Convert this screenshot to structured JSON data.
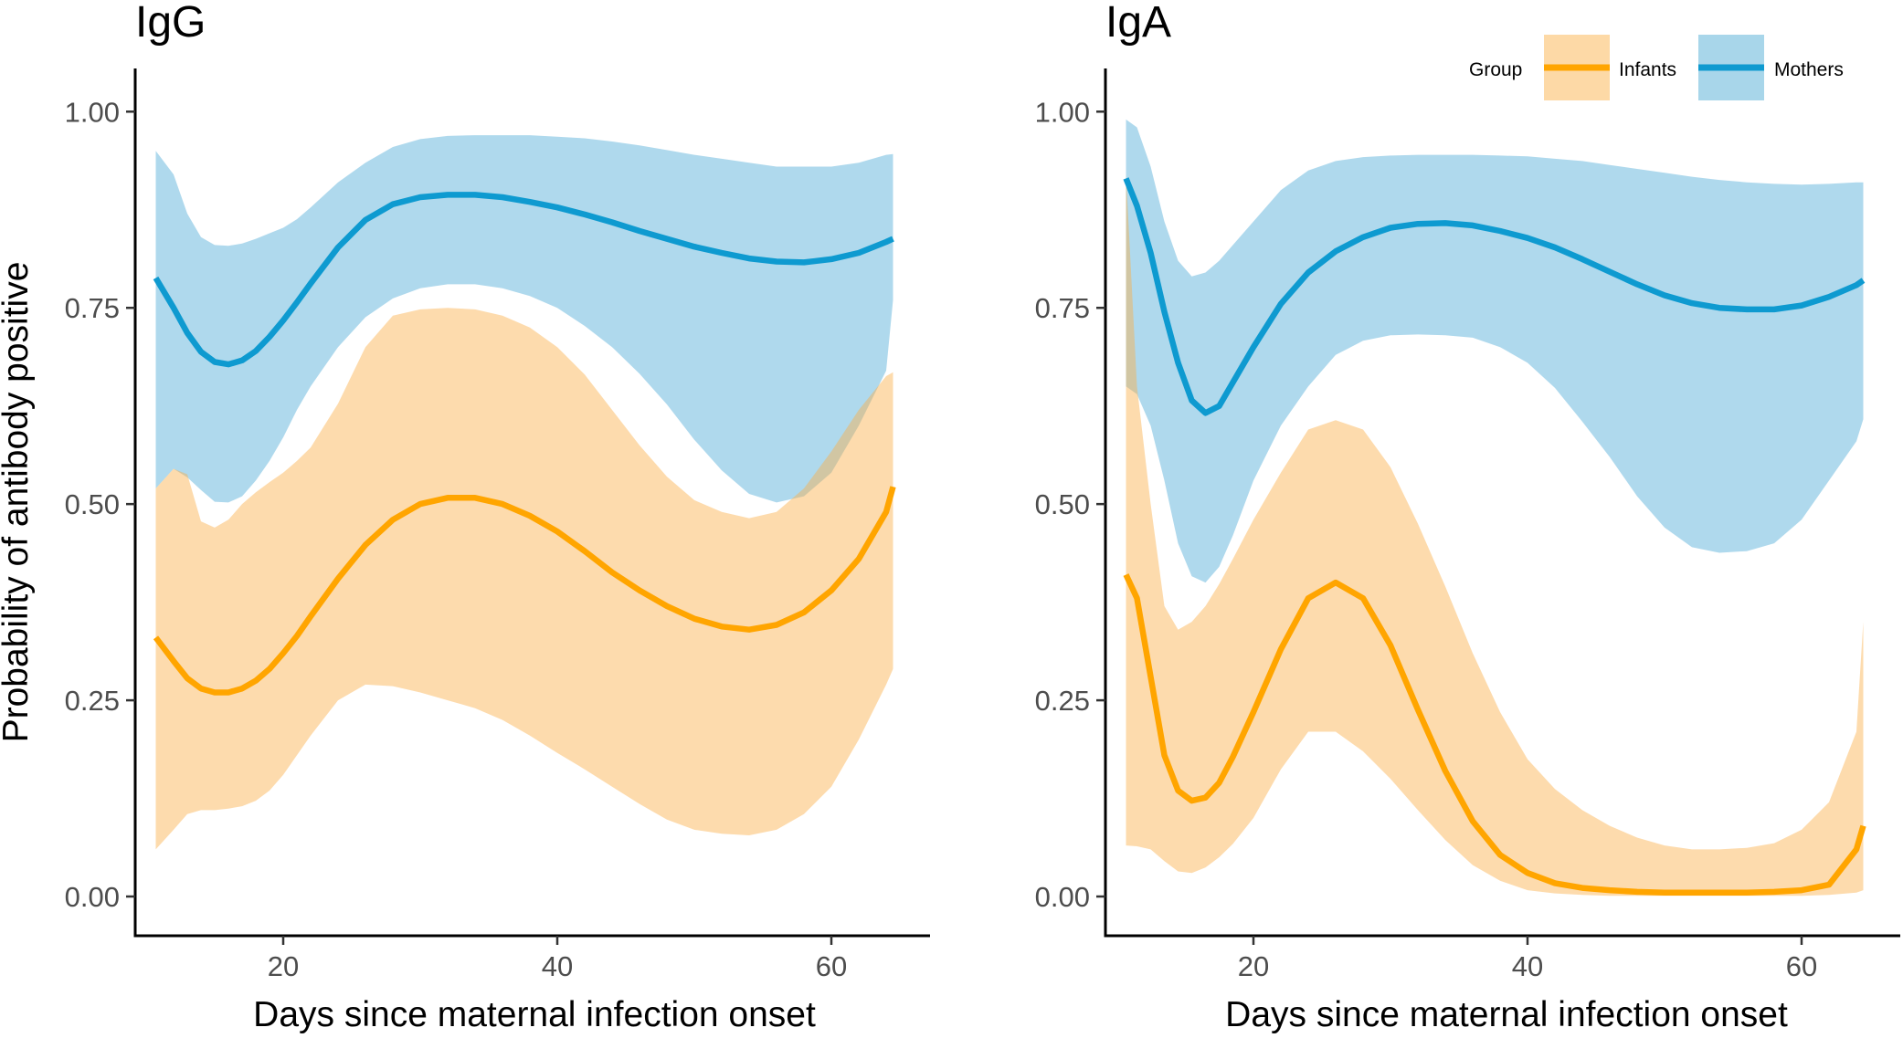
{
  "colors": {
    "infants": "#FFA500",
    "infants_band": "#FDD9A6",
    "mothers": "#0E9AD0",
    "mothers_band": "#A8D6EA",
    "axis": "#000000",
    "tick_label": "#4d4d4d"
  },
  "y_axis_label": "Probability of antibody positive",
  "legend": {
    "title": "Group",
    "position": "top-right",
    "entries": [
      "Infants",
      "Mothers"
    ]
  },
  "chart_data": [
    {
      "type": "line",
      "title": "IgG",
      "xlabel": "Days since maternal infection onset",
      "ylabel": "Probability of antibody positive",
      "xlim": [
        9.2,
        67.2
      ],
      "ylim": [
        -0.05,
        1.055
      ],
      "xticks": [
        20,
        40,
        60
      ],
      "xtick_labels": [
        "20",
        "40",
        "60"
      ],
      "yticks": [
        0,
        0.25,
        0.5,
        0.75,
        1.0
      ],
      "ytick_labels": [
        "0.00",
        "0.25",
        "0.50",
        "0.75",
        "1.00"
      ],
      "x": [
        10.7,
        12,
        13,
        14,
        15,
        16,
        17,
        18,
        19,
        20,
        21,
        22,
        24,
        26,
        28,
        30,
        32,
        34,
        36,
        38,
        40,
        42,
        44,
        46,
        48,
        50,
        52,
        54,
        56,
        58,
        60,
        62,
        64,
        64.5
      ],
      "series": [
        {
          "name": "Mothers",
          "values": [
            0.788,
            0.75,
            0.718,
            0.694,
            0.681,
            0.678,
            0.683,
            0.695,
            0.713,
            0.734,
            0.757,
            0.781,
            0.827,
            0.862,
            0.882,
            0.891,
            0.894,
            0.894,
            0.891,
            0.885,
            0.878,
            0.869,
            0.859,
            0.848,
            0.838,
            0.828,
            0.82,
            0.813,
            0.809,
            0.808,
            0.812,
            0.82,
            0.834,
            0.838
          ],
          "lower": [
            0.52,
            0.545,
            0.534,
            0.518,
            0.503,
            0.502,
            0.51,
            0.53,
            0.555,
            0.585,
            0.62,
            0.65,
            0.7,
            0.738,
            0.762,
            0.775,
            0.78,
            0.78,
            0.775,
            0.765,
            0.75,
            0.727,
            0.7,
            0.666,
            0.627,
            0.582,
            0.543,
            0.513,
            0.502,
            0.51,
            0.54,
            0.6,
            0.67,
            0.76
          ],
          "upper": [
            0.95,
            0.92,
            0.87,
            0.84,
            0.83,
            0.829,
            0.832,
            0.838,
            0.845,
            0.852,
            0.863,
            0.878,
            0.91,
            0.935,
            0.955,
            0.965,
            0.969,
            0.97,
            0.97,
            0.97,
            0.968,
            0.966,
            0.962,
            0.957,
            0.951,
            0.945,
            0.94,
            0.935,
            0.93,
            0.93,
            0.93,
            0.935,
            0.945,
            0.946
          ]
        },
        {
          "name": "Infants",
          "values": [
            0.33,
            0.3,
            0.278,
            0.265,
            0.26,
            0.26,
            0.265,
            0.275,
            0.29,
            0.31,
            0.332,
            0.357,
            0.405,
            0.448,
            0.48,
            0.5,
            0.508,
            0.508,
            0.5,
            0.485,
            0.465,
            0.44,
            0.413,
            0.39,
            0.37,
            0.354,
            0.344,
            0.34,
            0.346,
            0.362,
            0.39,
            0.43,
            0.49,
            0.522
          ],
          "lower": [
            0.06,
            0.085,
            0.105,
            0.11,
            0.11,
            0.112,
            0.115,
            0.122,
            0.135,
            0.155,
            0.18,
            0.205,
            0.25,
            0.27,
            0.268,
            0.26,
            0.25,
            0.24,
            0.225,
            0.205,
            0.183,
            0.162,
            0.14,
            0.118,
            0.098,
            0.085,
            0.08,
            0.078,
            0.085,
            0.105,
            0.14,
            0.2,
            0.27,
            0.29
          ],
          "upper": [
            0.52,
            0.545,
            0.538,
            0.478,
            0.47,
            0.48,
            0.5,
            0.515,
            0.528,
            0.54,
            0.555,
            0.572,
            0.628,
            0.7,
            0.74,
            0.748,
            0.75,
            0.748,
            0.74,
            0.725,
            0.7,
            0.665,
            0.62,
            0.575,
            0.535,
            0.505,
            0.49,
            0.482,
            0.49,
            0.52,
            0.567,
            0.62,
            0.663,
            0.668
          ]
        }
      ]
    },
    {
      "type": "line",
      "title": "IgA",
      "xlabel": "Days since maternal infection onset",
      "ylabel": "Probability of antibody positive",
      "xlim": [
        9.2,
        67.2
      ],
      "ylim": [
        -0.05,
        1.055
      ],
      "xticks": [
        20,
        40,
        60
      ],
      "xtick_labels": [
        "20",
        "40",
        "60"
      ],
      "yticks": [
        0,
        0.25,
        0.5,
        0.75,
        1.0
      ],
      "ytick_labels": [
        "0.00",
        "0.25",
        "0.50",
        "0.75",
        "1.00"
      ],
      "x": [
        10.7,
        11.5,
        12.5,
        13.5,
        14.5,
        15.5,
        16.5,
        17.5,
        18.5,
        20,
        22,
        24,
        26,
        28,
        30,
        32,
        34,
        36,
        38,
        40,
        42,
        44,
        46,
        48,
        50,
        52,
        54,
        56,
        58,
        60,
        62,
        64,
        64.5
      ],
      "series": [
        {
          "name": "Mothers",
          "values": [
            0.915,
            0.88,
            0.82,
            0.745,
            0.68,
            0.632,
            0.616,
            0.625,
            0.655,
            0.7,
            0.755,
            0.795,
            0.822,
            0.84,
            0.852,
            0.857,
            0.858,
            0.855,
            0.848,
            0.839,
            0.827,
            0.812,
            0.796,
            0.78,
            0.766,
            0.756,
            0.75,
            0.748,
            0.748,
            0.753,
            0.764,
            0.779,
            0.785
          ],
          "lower": [
            0.65,
            0.64,
            0.6,
            0.53,
            0.45,
            0.408,
            0.4,
            0.42,
            0.46,
            0.53,
            0.6,
            0.65,
            0.69,
            0.708,
            0.715,
            0.716,
            0.715,
            0.712,
            0.7,
            0.68,
            0.648,
            0.605,
            0.56,
            0.51,
            0.47,
            0.445,
            0.438,
            0.44,
            0.45,
            0.48,
            0.53,
            0.58,
            0.608
          ]
        },
        {
          "name": "Infants",
          "values": [
            0.41,
            0.38,
            0.28,
            0.18,
            0.135,
            0.122,
            0.126,
            0.145,
            0.178,
            0.235,
            0.315,
            0.38,
            0.4,
            0.38,
            0.32,
            0.238,
            0.16,
            0.096,
            0.053,
            0.03,
            0.017,
            0.011,
            0.008,
            0.006,
            0.005,
            0.005,
            0.005,
            0.005,
            0.006,
            0.008,
            0.015,
            0.06,
            0.09
          ],
          "lower": [
            0.065,
            0.064,
            0.06,
            0.045,
            0.032,
            0.03,
            0.037,
            0.05,
            0.067,
            0.1,
            0.162,
            0.21,
            0.21,
            0.185,
            0.15,
            0.11,
            0.072,
            0.04,
            0.02,
            0.008,
            0.004,
            0.002,
            0.001,
            0.001,
            0.001,
            0.001,
            0.001,
            0.001,
            0.001,
            0.001,
            0.002,
            0.005,
            0.008
          ],
          "upper": [
            0.92,
            0.65,
            0.5,
            0.37,
            0.34,
            0.35,
            0.37,
            0.398,
            0.43,
            0.48,
            0.54,
            0.595,
            0.607,
            0.595,
            0.547,
            0.475,
            0.395,
            0.31,
            0.235,
            0.175,
            0.137,
            0.11,
            0.09,
            0.075,
            0.065,
            0.06,
            0.06,
            0.062,
            0.068,
            0.085,
            0.12,
            0.21,
            0.35
          ]
        }
      ],
      "mothers_upper_extra": [
        0.99,
        0.98,
        0.93,
        0.86,
        0.81,
        0.79,
        0.795,
        0.81,
        0.83,
        0.86,
        0.9,
        0.925,
        0.937,
        0.942,
        0.944,
        0.945,
        0.945,
        0.945,
        0.944,
        0.943,
        0.94,
        0.937,
        0.932,
        0.927,
        0.922,
        0.917,
        0.913,
        0.91,
        0.908,
        0.907,
        0.908,
        0.91,
        0.91
      ]
    }
  ]
}
